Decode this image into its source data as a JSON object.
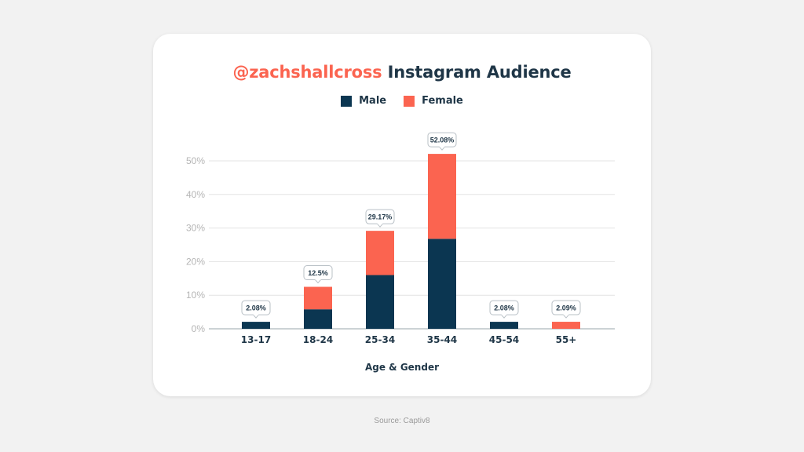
{
  "title": {
    "handle": "@zachshallcross",
    "rest": "Instagram Audience"
  },
  "source": "Source: Captiv8",
  "colors": {
    "male": "#0b3651",
    "female": "#fb6450",
    "handle": "#fb6450"
  },
  "chart_data": {
    "type": "bar",
    "stacked": true,
    "categories": [
      "13-17",
      "18-24",
      "25-34",
      "35-44",
      "45-54",
      "55+"
    ],
    "series": [
      {
        "name": "Male",
        "values": [
          2.08,
          5.8,
          16.0,
          26.8,
          2.08,
          0
        ]
      },
      {
        "name": "Female",
        "values": [
          0,
          6.7,
          13.17,
          25.28,
          0,
          2.09
        ]
      }
    ],
    "totals": [
      2.08,
      12.5,
      29.17,
      52.08,
      2.08,
      2.09
    ],
    "total_labels": [
      "2.08%",
      "12.5%",
      "29.17%",
      "52.08%",
      "2.08%",
      "2.09%"
    ],
    "xlabel": "Age & Gender",
    "ylabel": "",
    "ylim": [
      0,
      50
    ],
    "yticks": [
      0,
      10,
      20,
      30,
      40,
      50
    ],
    "ytick_labels": [
      "0%",
      "10%",
      "20%",
      "30%",
      "40%",
      "50%"
    ],
    "grid": true,
    "legend_position": "top-center"
  }
}
